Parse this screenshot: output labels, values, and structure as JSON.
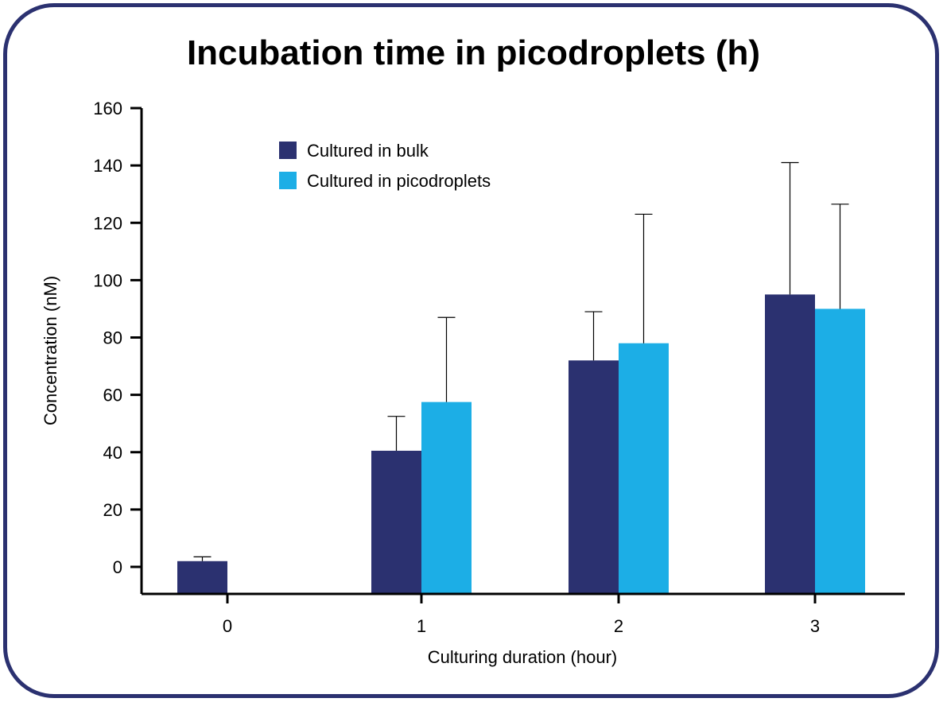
{
  "chart_data": {
    "type": "bar",
    "title": "Incubation time in picodroplets (h)",
    "xlabel": "Culturing duration (hour)",
    "ylabel": "Concentration (nM)",
    "categories": [
      "0",
      "1",
      "2",
      "3"
    ],
    "ylim": [
      -9,
      160
    ],
    "yticks": [
      0,
      20,
      40,
      60,
      80,
      100,
      120,
      140,
      160
    ],
    "grid": false,
    "legend_position": "top-left",
    "series": [
      {
        "name": "Cultured in bulk",
        "color": "#2b3170",
        "values": [
          2,
          40.5,
          72,
          95
        ],
        "error": [
          1.5,
          12,
          17,
          46
        ]
      },
      {
        "name": "Cultured in picodroplets",
        "color": "#1caee6",
        "values": [
          0,
          57.5,
          78,
          90
        ],
        "error": [
          0,
          29.5,
          45,
          36.5
        ]
      }
    ]
  }
}
